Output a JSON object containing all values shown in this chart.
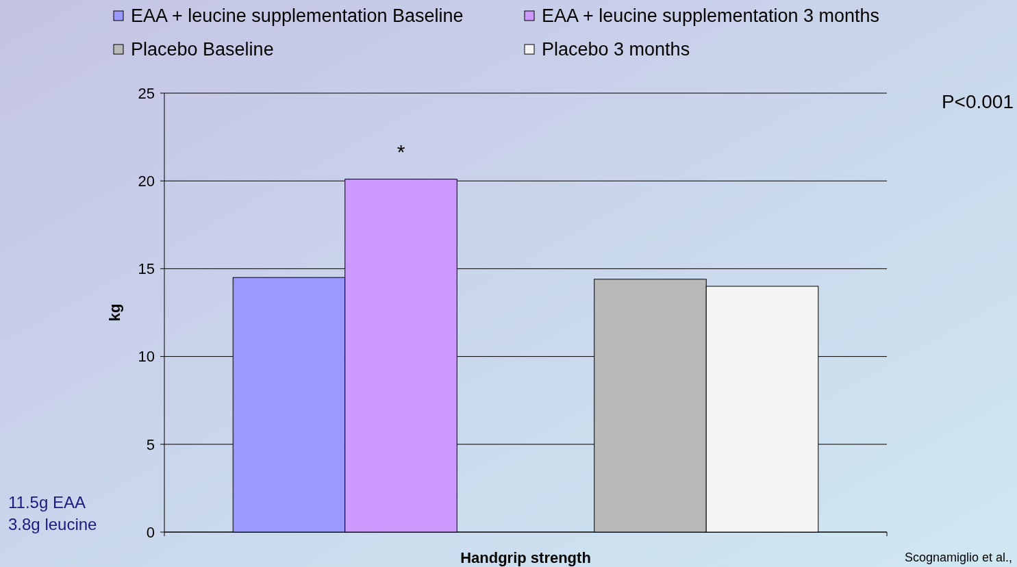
{
  "chart_data": {
    "type": "bar",
    "xlabel": "Handgrip strength",
    "ylabel": "kg",
    "categories": [
      null,
      null
    ],
    "series": [
      {
        "name": "EAA + leucine supplementation Baseline",
        "color": "#9999ff",
        "values": [
          14.5,
          null
        ]
      },
      {
        "name": "EAA + leucine supplementation 3 months",
        "color": "#cc99ff",
        "values": [
          20.1,
          null
        ]
      },
      {
        "name": "Placebo Baseline",
        "color": "#b8b8b8",
        "values": [
          null,
          14.4
        ]
      },
      {
        "name": "Placebo 3 months",
        "color": "#f4f4f4",
        "values": [
          null,
          14.0
        ]
      }
    ],
    "ylim": [
      0,
      25
    ],
    "yticks": [
      0,
      5,
      10,
      15,
      20,
      25
    ],
    "grid": "y",
    "legend": "top",
    "annotations": [
      "*",
      "P<0.001",
      "11.5g EAA",
      "3.8g leucine",
      "Scognamiglio et al.,"
    ]
  }
}
